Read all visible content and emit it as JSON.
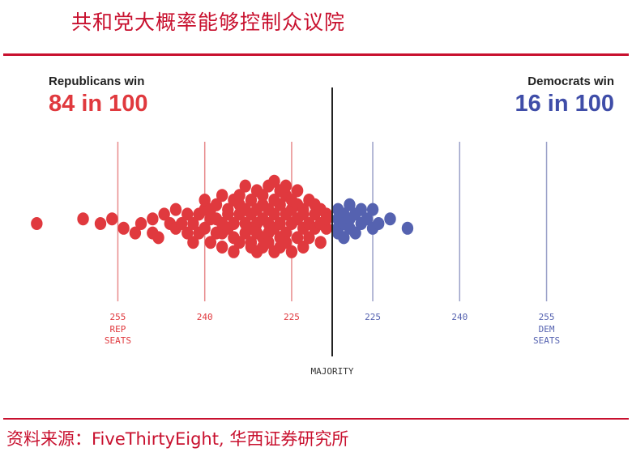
{
  "page": {
    "title": "共和党大概率能够控制众议院"
  },
  "source": {
    "prefix": "资料来源：",
    "brand": "FiveThirtyEight",
    "suffix": ", 华西证券研究所"
  },
  "outcomes": {
    "republicans": {
      "label": "Republicans win",
      "value": "84 in 100"
    },
    "democrats": {
      "label": "Democrats win",
      "value": "16 in 100"
    }
  },
  "colors": {
    "republican": "#e0393e",
    "democrat": "#5562b0",
    "accent": "#c8102e"
  },
  "chart_data": {
    "type": "scatter",
    "description_type": "dot-distribution",
    "x_axis": {
      "ticks": [
        {
          "value": -37,
          "label": "255",
          "sublabel": "REP\nSEATS",
          "party": "republican"
        },
        {
          "value": -22,
          "label": "240",
          "party": "republican"
        },
        {
          "value": -7,
          "label": "225",
          "party": "republican"
        },
        {
          "value": 7,
          "label": "225",
          "party": "democrat"
        },
        {
          "value": 22,
          "label": "240",
          "party": "democrat"
        },
        {
          "value": 37,
          "label": "255",
          "sublabel": "DEM\nSEATS",
          "party": "democrat"
        }
      ],
      "majority": {
        "value": 0,
        "label": "MAJORITY"
      },
      "xlim": [
        -51,
        52
      ]
    },
    "series": [
      {
        "name": "Republicans win",
        "color": "#e0393e",
        "points": [
          [
            -51,
            0
          ],
          [
            -43,
            0.4
          ],
          [
            -40,
            0
          ],
          [
            -38,
            0.4
          ],
          [
            -36,
            -0.4
          ],
          [
            -34,
            -0.8
          ],
          [
            -33,
            0
          ],
          [
            -31,
            0.4
          ],
          [
            -31,
            -0.8
          ],
          [
            -30,
            -1.2
          ],
          [
            -29,
            0.8
          ],
          [
            -28,
            0
          ],
          [
            -27,
            -0.4
          ],
          [
            -27,
            1.2
          ],
          [
            -26,
            0
          ],
          [
            -25,
            0.8
          ],
          [
            -25,
            -0.8
          ],
          [
            -24,
            -1.6
          ],
          [
            -24,
            0
          ],
          [
            -23,
            0.8
          ],
          [
            -23,
            -0.8
          ],
          [
            -22,
            1.2
          ],
          [
            -22,
            2
          ],
          [
            -22,
            -0.4
          ],
          [
            -21,
            -1.6
          ],
          [
            -21,
            0.4
          ],
          [
            -21,
            1.2
          ],
          [
            -20,
            -0.8
          ],
          [
            -20,
            0.4
          ],
          [
            -20,
            1.6
          ],
          [
            -19,
            0
          ],
          [
            -19,
            -0.8
          ],
          [
            -19,
            -2
          ],
          [
            -19,
            2.4
          ],
          [
            -18,
            1.2
          ],
          [
            -18,
            -0.4
          ],
          [
            -18,
            0.8
          ],
          [
            -17,
            2
          ],
          [
            -17,
            -1.2
          ],
          [
            -17,
            0
          ],
          [
            -17,
            -2.4
          ],
          [
            -16,
            0.8
          ],
          [
            -16,
            2.4
          ],
          [
            -16,
            -1.6
          ],
          [
            -16,
            1.6
          ],
          [
            -15,
            0
          ],
          [
            -15,
            -0.8
          ],
          [
            -15,
            3.2
          ],
          [
            -15,
            1.2
          ],
          [
            -14,
            -2
          ],
          [
            -14,
            2
          ],
          [
            -14,
            -0.4
          ],
          [
            -14,
            0.8
          ],
          [
            -14,
            -1.6
          ],
          [
            -13,
            1.2
          ],
          [
            -13,
            0
          ],
          [
            -13,
            2.8
          ],
          [
            -13,
            -0.8
          ],
          [
            -13,
            -2.4
          ],
          [
            -12,
            1.6
          ],
          [
            -12,
            -1.2
          ],
          [
            -12,
            0.4
          ],
          [
            -12,
            2.4
          ],
          [
            -12,
            -2
          ],
          [
            -11,
            0
          ],
          [
            -11,
            3.2
          ],
          [
            -11,
            -0.8
          ],
          [
            -11,
            1.2
          ],
          [
            -11,
            -1.6
          ],
          [
            -10,
            0.8
          ],
          [
            -10,
            2
          ],
          [
            -10,
            -2.4
          ],
          [
            -10,
            -0.4
          ],
          [
            -10,
            3.6
          ],
          [
            -9,
            1.6
          ],
          [
            -9,
            -1.2
          ],
          [
            -9,
            0
          ],
          [
            -9,
            2.8
          ],
          [
            -9,
            -2
          ],
          [
            -8,
            0.8
          ],
          [
            -8,
            -0.8
          ],
          [
            -8,
            2.4
          ],
          [
            -8,
            -1.6
          ],
          [
            -8,
            3.2
          ],
          [
            -7,
            1.2
          ],
          [
            -7,
            0
          ],
          [
            -7,
            -2.4
          ],
          [
            -7,
            2
          ],
          [
            -6,
            -1.2
          ],
          [
            -6,
            0.4
          ],
          [
            -6,
            2.8
          ],
          [
            -6,
            1.6
          ],
          [
            -5,
            -0.4
          ],
          [
            -5,
            1.2
          ],
          [
            -5,
            -2
          ],
          [
            -5,
            0.8
          ],
          [
            -4,
            2
          ],
          [
            -4,
            0
          ],
          [
            -4,
            -1.2
          ],
          [
            -3,
            0.8
          ],
          [
            -3,
            -0.4
          ],
          [
            -3,
            1.6
          ],
          [
            -2,
            -1.6
          ],
          [
            -2,
            0
          ],
          [
            -2,
            1.2
          ],
          [
            -1,
            0.8
          ],
          [
            -1,
            -0.4
          ],
          [
            -1,
            0.4
          ]
        ]
      },
      {
        "name": "Democrats win",
        "color": "#5562b0",
        "points": [
          [
            1,
            1.2
          ],
          [
            1,
            0.4
          ],
          [
            1,
            -0.4
          ],
          [
            1,
            -0.8
          ],
          [
            2,
            0.8
          ],
          [
            2,
            0
          ],
          [
            2,
            -1.2
          ],
          [
            3,
            1.6
          ],
          [
            3,
            0.4
          ],
          [
            3,
            -0.4
          ],
          [
            4,
            0.8
          ],
          [
            4,
            -0.8
          ],
          [
            5,
            1.2
          ],
          [
            5,
            0
          ],
          [
            6,
            0.4
          ],
          [
            7,
            -0.4
          ],
          [
            7,
            1.2
          ],
          [
            8,
            0
          ],
          [
            10,
            0.4
          ],
          [
            13,
            -0.4
          ]
        ]
      }
    ]
  }
}
